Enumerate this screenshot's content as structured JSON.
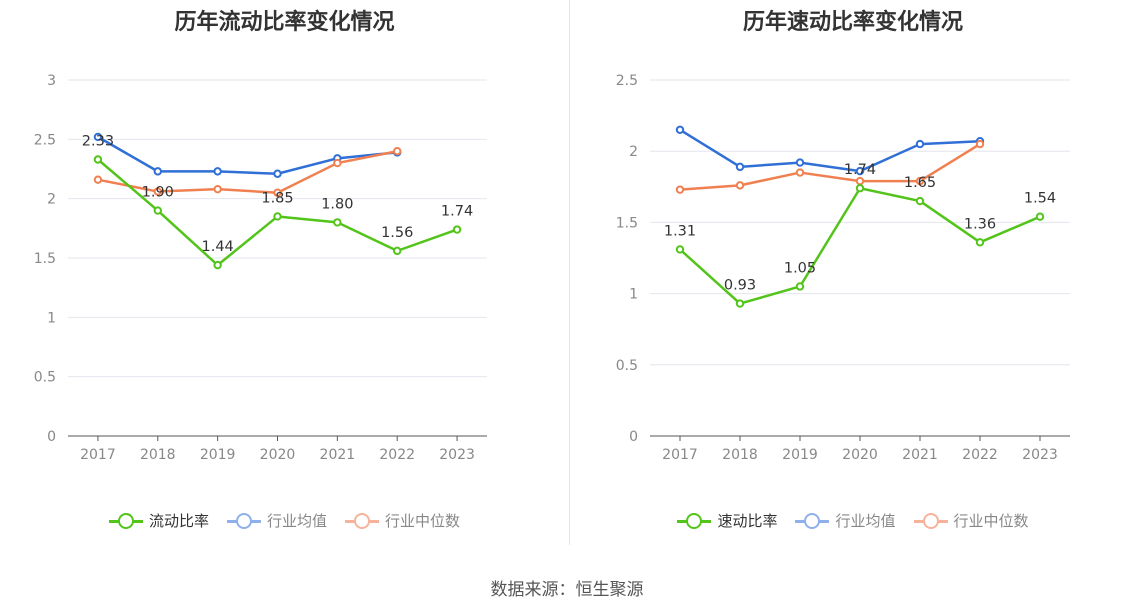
{
  "source_label": "数据来源：恒生聚源",
  "chart_data": [
    {
      "type": "line",
      "title": "历年流动比率变化情况",
      "categories": [
        "2017",
        "2018",
        "2019",
        "2020",
        "2021",
        "2022",
        "2023"
      ],
      "ylim": [
        0,
        3
      ],
      "yticks": [
        "0",
        "0.5",
        "1",
        "1.5",
        "2",
        "2.5",
        "3"
      ],
      "grid": true,
      "legend_position": "bottom",
      "series": [
        {
          "name": "流动比率",
          "color": "#52c41a",
          "values": [
            2.33,
            1.9,
            1.44,
            1.85,
            1.8,
            1.56,
            1.74
          ],
          "labels": [
            "2.33",
            "1.90",
            "1.44",
            "1.85",
            "1.80",
            "1.56",
            "1.74"
          ]
        },
        {
          "name": "行业均值",
          "color": "#2f6fd6",
          "values": [
            2.52,
            2.23,
            2.23,
            2.21,
            2.34,
            2.39,
            null
          ]
        },
        {
          "name": "行业中位数",
          "color": "#f08050",
          "values": [
            2.16,
            2.06,
            2.08,
            2.05,
            2.3,
            2.4,
            null
          ]
        }
      ]
    },
    {
      "type": "line",
      "title": "历年速动比率变化情况",
      "categories": [
        "2017",
        "2018",
        "2019",
        "2020",
        "2021",
        "2022",
        "2023"
      ],
      "ylim": [
        0,
        2.5
      ],
      "yticks": [
        "0",
        "0.5",
        "1",
        "1.5",
        "2",
        "2.5"
      ],
      "grid": true,
      "legend_position": "bottom",
      "series": [
        {
          "name": "速动比率",
          "color": "#52c41a",
          "values": [
            1.31,
            0.93,
            1.05,
            1.74,
            1.65,
            1.36,
            1.54
          ],
          "labels": [
            "1.31",
            "0.93",
            "1.05",
            "1.74",
            "1.65",
            "1.36",
            "1.54"
          ]
        },
        {
          "name": "行业均值",
          "color": "#2f6fd6",
          "values": [
            2.15,
            1.89,
            1.92,
            1.86,
            2.05,
            2.07,
            null
          ]
        },
        {
          "name": "行业中位数",
          "color": "#f08050",
          "values": [
            1.73,
            1.76,
            1.85,
            1.79,
            1.79,
            2.05,
            null
          ]
        }
      ]
    }
  ],
  "legend_muted_colors": {
    "行业均值": "#8fb0ea",
    "行业中位数": "#f6b29a"
  }
}
